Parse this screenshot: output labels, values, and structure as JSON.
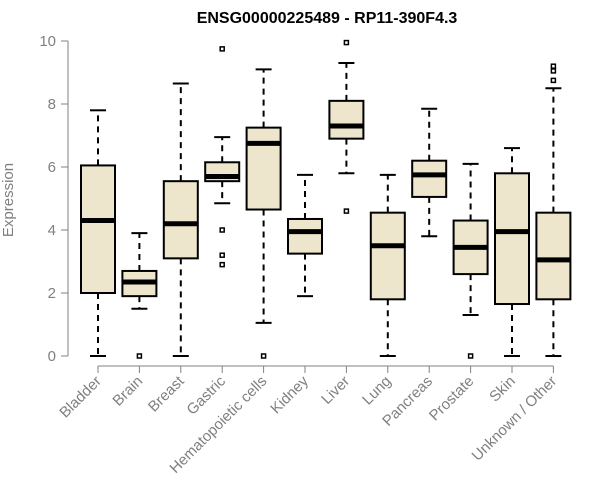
{
  "chart_data": {
    "type": "box",
    "title": "ENSG00000225489 - RP11-390F4.3",
    "xlabel": "",
    "ylabel": "Expression",
    "ylim": [
      0,
      10
    ],
    "yticks": [
      0,
      2,
      4,
      6,
      8,
      10
    ],
    "categories": [
      "Bladder",
      "Brain",
      "Breast",
      "Gastric",
      "Hematopoietic cells",
      "Kidney",
      "Liver",
      "Lung",
      "Pancreas",
      "Prostate",
      "Skin",
      "Unknown / Other"
    ],
    "boxes": [
      {
        "label": "Bladder",
        "min": 0.0,
        "q1": 2.0,
        "median": 4.3,
        "q3": 6.05,
        "max": 7.8,
        "outliers": []
      },
      {
        "label": "Brain",
        "min": 1.5,
        "q1": 1.9,
        "median": 2.35,
        "q3": 2.7,
        "max": 3.9,
        "outliers": [
          0.0
        ]
      },
      {
        "label": "Breast",
        "min": 0.0,
        "q1": 3.1,
        "median": 4.2,
        "q3": 5.55,
        "max": 8.65,
        "outliers": []
      },
      {
        "label": "Gastric",
        "min": 4.85,
        "q1": 5.55,
        "median": 5.7,
        "q3": 6.15,
        "max": 6.95,
        "outliers": [
          9.75,
          4.0,
          3.2,
          2.9
        ]
      },
      {
        "label": "Hematopoietic cells",
        "min": 1.05,
        "q1": 4.65,
        "median": 6.75,
        "q3": 7.25,
        "max": 9.1,
        "outliers": [
          0.0
        ]
      },
      {
        "label": "Kidney",
        "min": 1.9,
        "q1": 3.25,
        "median": 3.95,
        "q3": 4.35,
        "max": 5.75,
        "outliers": []
      },
      {
        "label": "Liver",
        "min": 5.8,
        "q1": 6.9,
        "median": 7.3,
        "q3": 8.1,
        "max": 9.3,
        "outliers": [
          9.95,
          4.6
        ]
      },
      {
        "label": "Lung",
        "min": 0.0,
        "q1": 1.8,
        "median": 3.5,
        "q3": 4.55,
        "max": 5.75,
        "outliers": []
      },
      {
        "label": "Pancreas",
        "min": 3.8,
        "q1": 5.05,
        "median": 5.75,
        "q3": 6.2,
        "max": 7.85,
        "outliers": []
      },
      {
        "label": "Prostate",
        "min": 1.3,
        "q1": 2.6,
        "median": 3.45,
        "q3": 4.3,
        "max": 6.1,
        "outliers": [
          0.0
        ]
      },
      {
        "label": "Skin",
        "min": 0.0,
        "q1": 1.65,
        "median": 3.95,
        "q3": 5.8,
        "max": 6.6,
        "outliers": []
      },
      {
        "label": "Unknown / Other",
        "min": 0.0,
        "q1": 1.8,
        "median": 3.05,
        "q3": 4.55,
        "max": 8.5,
        "outliers": [
          9.2,
          9.05,
          8.75
        ]
      }
    ],
    "colors": {
      "box_fill": "#ede6cd",
      "stroke": "#000000",
      "axis": "#808080"
    },
    "grid": false,
    "legend": "none"
  }
}
